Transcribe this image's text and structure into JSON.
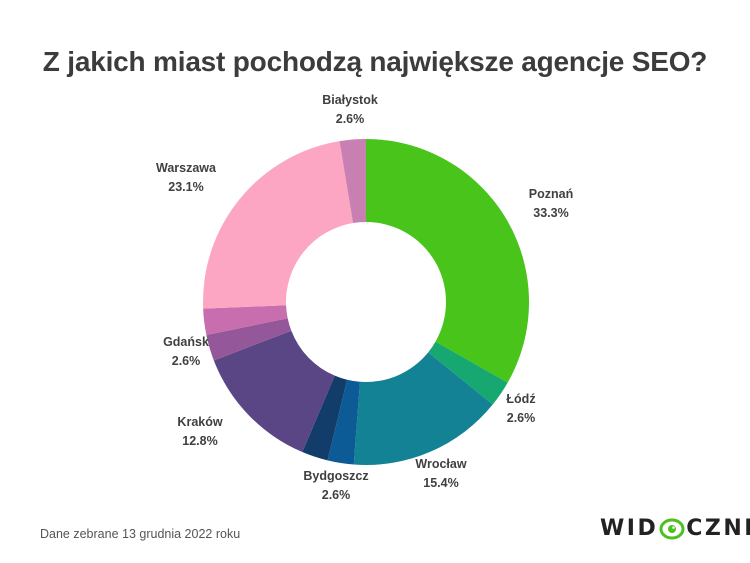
{
  "title": "Z jakich miast pochodzą największe agencje SEO?",
  "footnote": "Dane zebrane 13 grudnia 2022 roku",
  "logo": {
    "left": "WID",
    "right": "CZNI",
    "icon": "eye-icon",
    "accent": "#4dbf1e"
  },
  "chart_data": {
    "type": "donut",
    "title": "Z jakich miast pochodzą największe agencje SEO?",
    "start_angle_deg": 0,
    "direction": "clockwise",
    "slices": [
      {
        "label": "Poznań",
        "value": 33.3,
        "value_label": "33.3%",
        "color": "#48c41a",
        "show_label": true
      },
      {
        "label": "Łódź",
        "value": 2.6,
        "value_label": "2.6%",
        "color": "#16a870",
        "show_label": true
      },
      {
        "label": "Wrocław",
        "value": 15.4,
        "value_label": "15.4%",
        "color": "#138295",
        "show_label": true
      },
      {
        "label": "",
        "value": 2.6,
        "value_label": "",
        "color": "#0c5b96",
        "show_label": false
      },
      {
        "label": "Bydgoszcz",
        "value": 2.6,
        "value_label": "2.6%",
        "color": "#123c6a",
        "show_label": true
      },
      {
        "label": "Kraków",
        "value": 12.8,
        "value_label": "12.8%",
        "color": "#5a4585",
        "show_label": true
      },
      {
        "label": "",
        "value": 2.6,
        "value_label": "",
        "color": "#94589a",
        "show_label": false
      },
      {
        "label": "Gdańsk",
        "value": 2.6,
        "value_label": "2.6%",
        "color": "#c86eae",
        "show_label": true
      },
      {
        "label": "Warszawa",
        "value": 23.1,
        "value_label": "23.1%",
        "color": "#fca6c3",
        "show_label": true
      },
      {
        "label": "Białystok",
        "value": 2.6,
        "value_label": "2.6%",
        "color": "#c87fb2",
        "show_label": true
      }
    ]
  }
}
